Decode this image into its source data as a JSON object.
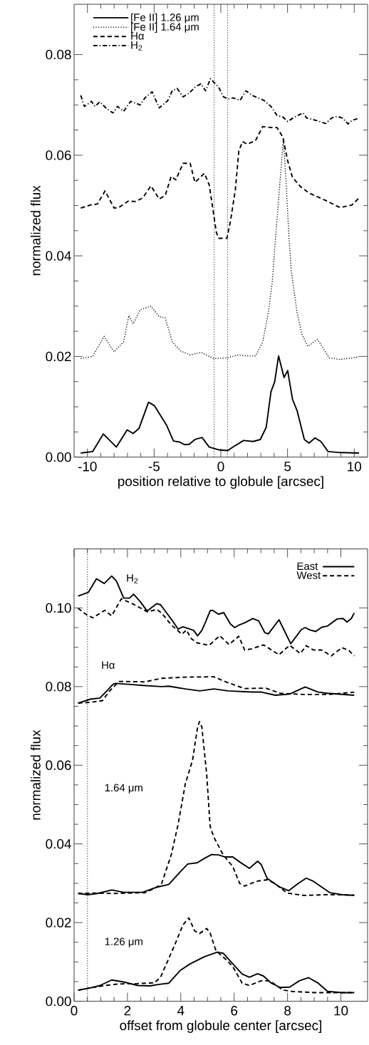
{
  "chart_data": [
    {
      "type": "line",
      "xlabel": "position relative to globule [arcsec]",
      "ylabel": "normalized flux",
      "xlim": [
        -11,
        11
      ],
      "ylim": [
        0,
        0.09
      ],
      "xticks": [
        -10,
        -5,
        0,
        5,
        10
      ],
      "yticks": [
        {
          "value": 0,
          "label": "0.00"
        },
        {
          "value": 0.02,
          "label": "0.02"
        },
        {
          "value": 0.04,
          "label": "0.04"
        },
        {
          "value": 0.06,
          "label": "0.06"
        },
        {
          "value": 0.08,
          "label": "0.08"
        }
      ],
      "legend": "top left",
      "ref_lines": [
        {
          "axis": "x",
          "value": -0.5,
          "color": "#000000",
          "line_style": "dotted"
        },
        {
          "axis": "x",
          "value": 0.5,
          "color": "#000000",
          "line_style": "dotted"
        }
      ],
      "series": [
        {
          "name": "[Fe II] 1.26 μm",
          "color": "#000000",
          "line_style": "solid",
          "x": [
            -10.5,
            -9.61,
            -8.81,
            -7.83,
            -7.02,
            -6.58,
            -6.13,
            -5.42,
            -4.97,
            -4.08,
            -3.55,
            -3.1,
            -2.75,
            -2.39,
            -1.94,
            -1.41,
            -0.87,
            -0.07,
            0.52,
            0.91,
            1.71,
            2.42,
            2.96,
            3.4,
            3.76,
            4.03,
            4.33,
            4.74,
            5.01,
            5.37,
            5.72,
            6.26,
            6.61,
            7.06,
            7.5,
            8.04,
            8.93,
            10.36
          ],
          "values": [
            0.0008,
            0.0011,
            0.0046,
            0.002,
            0.0054,
            0.0047,
            0.0057,
            0.0109,
            0.0102,
            0.0064,
            0.0032,
            0.003,
            0.0025,
            0.0025,
            0.0035,
            0.0039,
            0.002,
            0.0014,
            0.0013,
            0.002,
            0.0033,
            0.0031,
            0.0035,
            0.0059,
            0.013,
            0.0149,
            0.0201,
            0.0158,
            0.0172,
            0.0115,
            0.0092,
            0.0035,
            0.0028,
            0.0038,
            0.0031,
            0.0011,
            0.0009,
            0.0008
          ]
        },
        {
          "name": "[Fe II] 1.64 μm",
          "color": "#000000",
          "line_style": "dotted",
          "x": [
            -10.5,
            -9.61,
            -8.75,
            -8.0,
            -7.29,
            -6.9,
            -6.58,
            -6.04,
            -5.24,
            -4.62,
            -4.17,
            -3.64,
            -3.01,
            -2.3,
            -1.5,
            -0.52,
            0.46,
            1.27,
            1.98,
            2.6,
            3.14,
            3.58,
            3.85,
            4.12,
            4.39,
            4.69,
            4.92,
            5.1,
            5.28,
            5.72,
            6.08,
            6.52,
            7.24,
            7.59,
            8.13,
            8.93,
            10.36
          ],
          "values": [
            0.0196,
            0.02,
            0.024,
            0.0209,
            0.0229,
            0.0281,
            0.0265,
            0.0293,
            0.03,
            0.0279,
            0.0277,
            0.0229,
            0.0211,
            0.0203,
            0.0208,
            0.0196,
            0.0197,
            0.0203,
            0.0201,
            0.0201,
            0.0229,
            0.029,
            0.0347,
            0.0442,
            0.0532,
            0.0634,
            0.0532,
            0.0442,
            0.0371,
            0.0286,
            0.0244,
            0.022,
            0.0234,
            0.022,
            0.0197,
            0.0194,
            0.0199
          ]
        },
        {
          "name": "Hα",
          "color": "#000000",
          "line_style": "dashed",
          "x": [
            -10.5,
            -9.79,
            -9.25,
            -8.68,
            -8.0,
            -7.65,
            -6.93,
            -6.4,
            -5.86,
            -5.24,
            -4.62,
            -4.17,
            -3.72,
            -3.37,
            -2.83,
            -2.3,
            -1.94,
            -1.23,
            -0.87,
            -0.55,
            -0.34,
            -0.16,
            0.46,
            0.73,
            1.09,
            1.35,
            1.62,
            1.98,
            2.6,
            3.14,
            3.76,
            4.21,
            4.65,
            5.01,
            5.37,
            5.99,
            6.61,
            7.86,
            8.93,
            9.82,
            10.36
          ],
          "values": [
            0.0495,
            0.0501,
            0.0503,
            0.0529,
            0.0495,
            0.0496,
            0.0509,
            0.0508,
            0.0515,
            0.0539,
            0.0513,
            0.052,
            0.0558,
            0.0551,
            0.0584,
            0.0584,
            0.0546,
            0.0564,
            0.0541,
            0.0485,
            0.0447,
            0.0435,
            0.0435,
            0.047,
            0.0532,
            0.0608,
            0.0627,
            0.0622,
            0.0629,
            0.0657,
            0.0655,
            0.0655,
            0.0636,
            0.0589,
            0.0556,
            0.0537,
            0.0525,
            0.051,
            0.0496,
            0.0501,
            0.0515
          ]
        },
        {
          "name": "H$_{2}$",
          "color": "#000000",
          "line_style": "dashdot",
          "x": [
            -10.5,
            -10.23,
            -9.7,
            -9.43,
            -9.07,
            -8.54,
            -8.09,
            -7.74,
            -7.29,
            -6.76,
            -6.04,
            -5.69,
            -5.15,
            -4.62,
            -3.99,
            -3.64,
            -3.28,
            -2.83,
            -2.39,
            -1.94,
            -1.5,
            -1.14,
            -0.78,
            -0.16,
            0.2,
            0.55,
            0.91,
            1.44,
            1.89,
            2.33,
            3.23,
            3.76,
            4.21,
            4.65,
            5.01,
            5.54,
            6.17,
            6.43,
            7.15,
            7.86,
            8.31,
            8.75,
            9.11,
            9.55,
            9.82,
            10.27
          ],
          "values": [
            0.0719,
            0.0697,
            0.0707,
            0.0697,
            0.0706,
            0.0692,
            0.0684,
            0.0697,
            0.0687,
            0.0707,
            0.07,
            0.0714,
            0.0726,
            0.0694,
            0.0708,
            0.0728,
            0.0733,
            0.0716,
            0.0723,
            0.0735,
            0.0742,
            0.0728,
            0.0752,
            0.0735,
            0.0716,
            0.0712,
            0.0714,
            0.0709,
            0.0728,
            0.0719,
            0.0709,
            0.0697,
            0.0679,
            0.0676,
            0.0667,
            0.0676,
            0.0684,
            0.0674,
            0.0669,
            0.0663,
            0.0674,
            0.0677,
            0.0674,
            0.0662,
            0.0669,
            0.0673
          ]
        }
      ]
    },
    {
      "type": "line",
      "xlabel": "offset from globule center [arcsec]",
      "ylabel": "normalized flux",
      "xlim": [
        0,
        11
      ],
      "ylim": [
        0,
        0.115
      ],
      "xticks": [
        0,
        2,
        4,
        6,
        8,
        10
      ],
      "yticks": [
        {
          "value": 0,
          "label": "0.00"
        },
        {
          "value": 0.02,
          "label": "0.02"
        },
        {
          "value": 0.04,
          "label": "0.04"
        },
        {
          "value": 0.06,
          "label": "0.06"
        },
        {
          "value": 0.08,
          "label": "0.08"
        },
        {
          "value": 0.1,
          "label": "0.10"
        }
      ],
      "legend": "top right",
      "ref_lines": [
        {
          "axis": "x",
          "value": 0.5,
          "color": "#000000",
          "line_style": "dotted"
        }
      ],
      "annotations": [
        "H$_{2}$",
        "Hα",
        "1.64 μm",
        "1.26 μm"
      ],
      "series": [
        {
          "name": "East",
          "color": "#000000",
          "line_style": "solid",
          "x": [
            0.15,
            0.54,
            0.84,
            1.13,
            1.41,
            1.59,
            1.86,
            2.08,
            2.23,
            2.48,
            2.74,
            3.1,
            3.24,
            3.46,
            3.68,
            3.9,
            4.08,
            4.48,
            4.63,
            4.79,
            4.92,
            5.1,
            5.19,
            5.41,
            5.61,
            5.86,
            6.02,
            6.17,
            6.39,
            6.7,
            6.92,
            7.15,
            7.28,
            7.68,
            8.12,
            8.52,
            8.66,
            8.84,
            9.06,
            9.28,
            9.5,
            9.86,
            10.08,
            10.23,
            10.39,
            10.5
          ],
          "values": [
            0.103,
            0.104,
            0.1074,
            0.1062,
            0.1081,
            0.1068,
            0.1025,
            0.1025,
            0.1035,
            0.1016,
            0.0992,
            0.1011,
            0.1008,
            0.0988,
            0.0968,
            0.0946,
            0.0952,
            0.0943,
            0.0929,
            0.0943,
            0.0963,
            0.0993,
            0.0994,
            0.0984,
            0.0988,
            0.0959,
            0.095,
            0.0956,
            0.0962,
            0.0973,
            0.0967,
            0.0937,
            0.0934,
            0.097,
            0.0909,
            0.0945,
            0.095,
            0.0944,
            0.094,
            0.0951,
            0.0954,
            0.0972,
            0.0973,
            0.0964,
            0.0973,
            0.0987
          ]
        },
        {
          "name": "West",
          "color": "#000000",
          "line_style": "dashed",
          "x": [
            0.15,
            0.48,
            0.7,
            1.15,
            1.41,
            1.77,
            2.21,
            2.75,
            3.1,
            3.28,
            3.64,
            4.04,
            4.21,
            4.39,
            4.61,
            5.06,
            5.46,
            5.81,
            6.17,
            6.39,
            6.66,
            7.1,
            7.68,
            8.08,
            8.48,
            8.7,
            8.97,
            9.28,
            9.64,
            10.04,
            10.3,
            10.5
          ],
          "values": [
            0.0999,
            0.0982,
            0.0975,
            0.0994,
            0.098,
            0.1023,
            0.101,
            0.099,
            0.0996,
            0.0987,
            0.0957,
            0.0933,
            0.0944,
            0.0922,
            0.0911,
            0.0905,
            0.0929,
            0.0907,
            0.0928,
            0.0893,
            0.0896,
            0.0906,
            0.0881,
            0.0905,
            0.0884,
            0.0904,
            0.0893,
            0.0893,
            0.0878,
            0.0899,
            0.0892,
            0.0878
          ]
        },
        {
          "color": "#000000",
          "line_style": "solid",
          "x": [
            0.15,
            0.61,
            0.97,
            1.24,
            1.46,
            1.55,
            2.21,
            2.57,
            3.28,
            3.55,
            4.17,
            4.71,
            5.24,
            5.77,
            6.66,
            7.02,
            7.55,
            8.08,
            8.66,
            9.15,
            9.5,
            10.5
          ],
          "values": [
            0.0758,
            0.0768,
            0.0771,
            0.079,
            0.0806,
            0.0808,
            0.0805,
            0.0803,
            0.08,
            0.0801,
            0.0794,
            0.0789,
            0.0794,
            0.0789,
            0.0786,
            0.0786,
            0.0778,
            0.0781,
            0.0799,
            0.0786,
            0.0783,
            0.0778
          ]
        },
        {
          "color": "#000000",
          "line_style": "dashed",
          "x": [
            0.15,
            0.61,
            1.06,
            1.32,
            1.68,
            2.66,
            3.28,
            4.17,
            5.24,
            5.68,
            6.39,
            7.19,
            7.72,
            8.61,
            9.5,
            10.04,
            10.5
          ],
          "values": [
            0.0758,
            0.076,
            0.0764,
            0.0788,
            0.0813,
            0.0812,
            0.0821,
            0.0824,
            0.0825,
            0.0812,
            0.0795,
            0.0796,
            0.0783,
            0.078,
            0.078,
            0.0783,
            0.0786
          ]
        },
        {
          "color": "#000000",
          "line_style": "solid",
          "x": [
            0.15,
            0.52,
            0.88,
            1.41,
            1.86,
            2.57,
            3.1,
            3.55,
            3.99,
            4.26,
            4.61,
            4.88,
            5.15,
            5.41,
            5.64,
            5.95,
            6.21,
            6.57,
            6.88,
            7.01,
            7.24,
            7.72,
            8.04,
            8.39,
            8.7,
            8.97,
            9.59,
            10.04,
            10.5
          ],
          "values": [
            0.0274,
            0.0271,
            0.0274,
            0.0283,
            0.0277,
            0.0277,
            0.029,
            0.0297,
            0.033,
            0.0349,
            0.0352,
            0.0363,
            0.0373,
            0.0372,
            0.0367,
            0.0367,
            0.0354,
            0.0338,
            0.0356,
            0.0348,
            0.0312,
            0.029,
            0.0281,
            0.0299,
            0.0313,
            0.0305,
            0.0276,
            0.0271,
            0.0269
          ]
        },
        {
          "color": "#000000",
          "line_style": "dashed",
          "x": [
            0.15,
            0.7,
            1.5,
            2.66,
            3.1,
            3.28,
            3.64,
            3.9,
            4.17,
            4.44,
            4.63,
            4.7,
            4.79,
            4.97,
            5.1,
            5.24,
            5.59,
            5.95,
            6.21,
            6.39,
            6.84,
            7.24,
            7.5,
            7.99,
            8.61,
            9.5,
            10.5
          ],
          "values": [
            0.0274,
            0.0275,
            0.0274,
            0.0276,
            0.029,
            0.0299,
            0.0372,
            0.045,
            0.0553,
            0.0613,
            0.0697,
            0.0711,
            0.0697,
            0.0577,
            0.0444,
            0.0417,
            0.0372,
            0.0342,
            0.0299,
            0.0293,
            0.0305,
            0.0309,
            0.03,
            0.0275,
            0.0269,
            0.0271,
            0.027
          ]
        },
        {
          "color": "#000000",
          "line_style": "solid",
          "x": [
            0.15,
            0.61,
            0.97,
            1.41,
            1.86,
            2.39,
            2.84,
            3.19,
            3.55,
            3.99,
            4.35,
            4.88,
            5.37,
            5.59,
            5.95,
            6.3,
            6.57,
            6.88,
            7.1,
            7.37,
            7.72,
            8.08,
            8.44,
            8.79,
            9.15,
            9.5,
            10.04,
            10.5
          ],
          "values": [
            0.0028,
            0.0034,
            0.004,
            0.0054,
            0.0049,
            0.004,
            0.0039,
            0.0043,
            0.0046,
            0.0079,
            0.0095,
            0.0113,
            0.0125,
            0.0122,
            0.0095,
            0.0069,
            0.0061,
            0.007,
            0.0064,
            0.0047,
            0.0035,
            0.0036,
            0.0052,
            0.006,
            0.0046,
            0.0025,
            0.0022,
            0.0022
          ]
        },
        {
          "color": "#000000",
          "line_style": "dashed",
          "x": [
            0.15,
            0.61,
            1.15,
            1.68,
            2.39,
            3.01,
            3.24,
            3.46,
            3.77,
            4.08,
            4.3,
            4.52,
            4.7,
            4.97,
            5.1,
            5.32,
            5.68,
            5.95,
            6.3,
            6.57,
            7.01,
            7.32,
            7.59,
            7.81,
            8.17,
            9.06,
            10.5
          ],
          "values": [
            0.0028,
            0.0034,
            0.004,
            0.0044,
            0.0045,
            0.0047,
            0.0061,
            0.0095,
            0.0143,
            0.0194,
            0.0212,
            0.0179,
            0.0172,
            0.0185,
            0.0173,
            0.0128,
            0.0107,
            0.0088,
            0.0046,
            0.004,
            0.0052,
            0.0052,
            0.004,
            0.0029,
            0.0025,
            0.0022,
            0.0022
          ]
        }
      ]
    }
  ]
}
